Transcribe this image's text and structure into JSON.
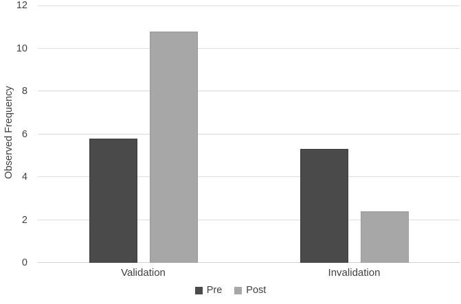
{
  "chart_data": {
    "type": "bar",
    "title": "",
    "xlabel": "",
    "ylabel": "Observed Frequency",
    "categories": [
      "Validation",
      "Invalidation"
    ],
    "series": [
      {
        "name": "Pre",
        "values": [
          5.8,
          5.3
        ],
        "fill": "#4a4a4a",
        "border": "#3c3c3c"
      },
      {
        "name": "Post",
        "values": [
          10.8,
          2.4
        ],
        "fill": "#a7a7a7",
        "border": "#979797"
      }
    ],
    "ylim": [
      0,
      12
    ],
    "yticks": [
      0,
      2,
      4,
      6,
      8,
      10,
      12
    ],
    "grid": true,
    "legend_position": "bottom-center",
    "colors": {
      "background": "#ffffff",
      "gridline": "#dcdcdc",
      "axis_line": "#d0d0d0",
      "text": "#3f3f3f"
    }
  }
}
